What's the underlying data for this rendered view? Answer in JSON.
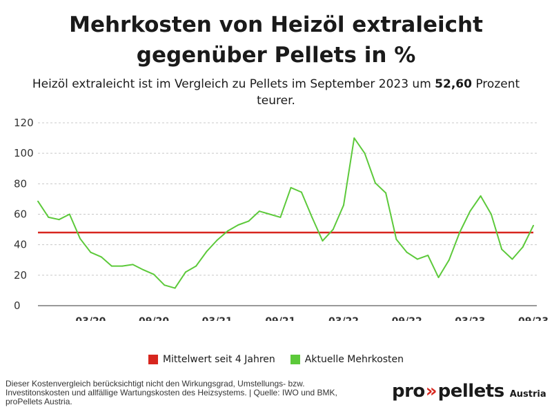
{
  "title_line1": "Mehrkosten von Heizöl extraleicht",
  "title_line2": "gegenüber Pellets in %",
  "subtitle": {
    "part1": "Heizöl extraleicht",
    "part2": " ist im Vergleich zu Pellets im September 2023 um ",
    "value": "52,60",
    "part3": " Prozent teurer."
  },
  "legend": {
    "mean_label": "Mittelwert seit 4 Jahren",
    "current_label": "Aktuelle Mehrkosten"
  },
  "footnote": "Dieser Kostenvergleich berücksichtigt nicht den Wirkungsgrad, Umstellungs- bzw. Investitonskosten und allfällige Wartungskosten des Heizsystems. | Quelle: IWO und BMK, proPellets Austria.",
  "logo": {
    "pro": "pro",
    "arrows": "»",
    "pellets": "pellets",
    "country": "Austria"
  },
  "colors": {
    "mean_line": "#d7261e",
    "series_line": "#5cc93a",
    "grid": "#c8c8c8",
    "axis": "#333333"
  },
  "chart_data": {
    "type": "line",
    "title": "Mehrkosten von Heizöl extraleicht gegenüber Pellets in %",
    "ylim": [
      0,
      120
    ],
    "yticks": [
      0,
      20,
      40,
      60,
      80,
      100,
      120
    ],
    "grid": true,
    "legend_position": "bottom",
    "x_tick_labels": [
      {
        "index": 6,
        "label": "03/20"
      },
      {
        "index": 12,
        "label": "09/20"
      },
      {
        "index": 18,
        "label": "03/21"
      },
      {
        "index": 24,
        "label": "09/21"
      },
      {
        "index": 30,
        "label": "03/22"
      },
      {
        "index": 36,
        "label": "09/22"
      },
      {
        "index": 42,
        "label": "03/23"
      },
      {
        "index": 48,
        "label": "09/23"
      }
    ],
    "series": [
      {
        "name": "Aktuelle Mehrkosten",
        "values": [
          68.5,
          58,
          56.5,
          60,
          44,
          35,
          32,
          26,
          26,
          27,
          23.5,
          20.5,
          13.5,
          11.5,
          22,
          26,
          35.5,
          43,
          49,
          53,
          55.5,
          62,
          60,
          58,
          77.5,
          74.5,
          58,
          42.5,
          50,
          66,
          110,
          100,
          80.5,
          74,
          43.5,
          35,
          30.5,
          33,
          18.5,
          30,
          48,
          62,
          72,
          60,
          37,
          30.5,
          38.5,
          52.6
        ]
      },
      {
        "name": "Mittelwert seit 4 Jahren",
        "constant": 48
      }
    ]
  }
}
